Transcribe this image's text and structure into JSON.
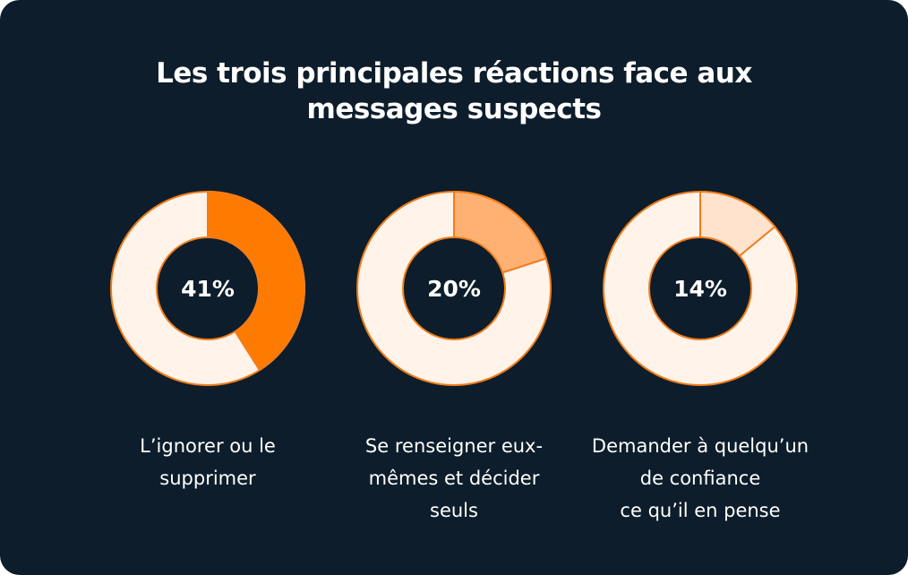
{
  "chart_data": {
    "type": "pie",
    "title_lines": [
      "Les trois principales réactions face aux",
      "messages suspects"
    ],
    "colors": {
      "background": "#0d1d2b",
      "remainder": "#fff3ea",
      "stroke": "#f07d1a",
      "hole": "#0d1d2b"
    },
    "items": [
      {
        "value": 41,
        "value_label": "41%",
        "color": "#ff7a00",
        "label_lines": [
          "L’ignorer ou le",
          "supprimer"
        ]
      },
      {
        "value": 20,
        "value_label": "20%",
        "color": "#ffb173",
        "label_lines": [
          "Se renseigner eux-",
          "mêmes et décider",
          "seuls"
        ]
      },
      {
        "value": 14,
        "value_label": "14%",
        "color": "#ffe3cd",
        "label_lines": [
          "Demander à quelqu’un",
          "de confiance",
          "ce qu’il en pense"
        ]
      }
    ]
  }
}
